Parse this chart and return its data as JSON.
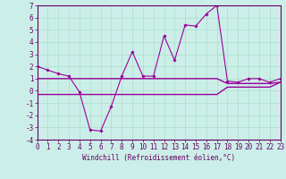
{
  "xlabel": "Windchill (Refroidissement éolien,°C)",
  "background_color": "#cceee8",
  "grid_color": "#aaddcc",
  "line_color": "#990099",
  "x_hours": [
    0,
    1,
    2,
    3,
    4,
    5,
    6,
    7,
    8,
    9,
    10,
    11,
    12,
    13,
    14,
    15,
    16,
    17,
    18,
    19,
    20,
    21,
    22,
    23
  ],
  "temp_line": [
    2.0,
    1.7,
    1.4,
    1.2,
    -0.1,
    -3.2,
    -3.3,
    -1.3,
    1.2,
    3.2,
    1.2,
    1.2,
    4.5,
    2.5,
    5.4,
    5.3,
    6.3,
    7.0,
    0.8,
    0.7,
    1.0,
    1.0,
    0.7,
    1.0
  ],
  "wind_line1": [
    1.0,
    1.0,
    1.0,
    1.0,
    1.0,
    1.0,
    1.0,
    1.0,
    1.0,
    1.0,
    1.0,
    1.0,
    1.0,
    1.0,
    1.0,
    1.0,
    1.0,
    1.0,
    0.6,
    0.6,
    0.6,
    0.6,
    0.6,
    0.7
  ],
  "wind_line2": [
    -0.3,
    -0.3,
    -0.3,
    -0.3,
    -0.3,
    -0.3,
    -0.3,
    -0.3,
    -0.3,
    -0.3,
    -0.3,
    -0.3,
    -0.3,
    -0.3,
    -0.3,
    -0.3,
    -0.3,
    -0.3,
    0.3,
    0.3,
    0.3,
    0.3,
    0.3,
    0.7
  ],
  "ylim": [
    -4,
    7
  ],
  "yticks": [
    -4,
    -3,
    -2,
    -1,
    0,
    1,
    2,
    3,
    4,
    5,
    6,
    7
  ],
  "xticks": [
    0,
    1,
    2,
    3,
    4,
    5,
    6,
    7,
    8,
    9,
    10,
    11,
    12,
    13,
    14,
    15,
    16,
    17,
    18,
    19,
    20,
    21,
    22,
    23
  ],
  "xlabel_fontsize": 5.5,
  "tick_fontsize": 5.5
}
